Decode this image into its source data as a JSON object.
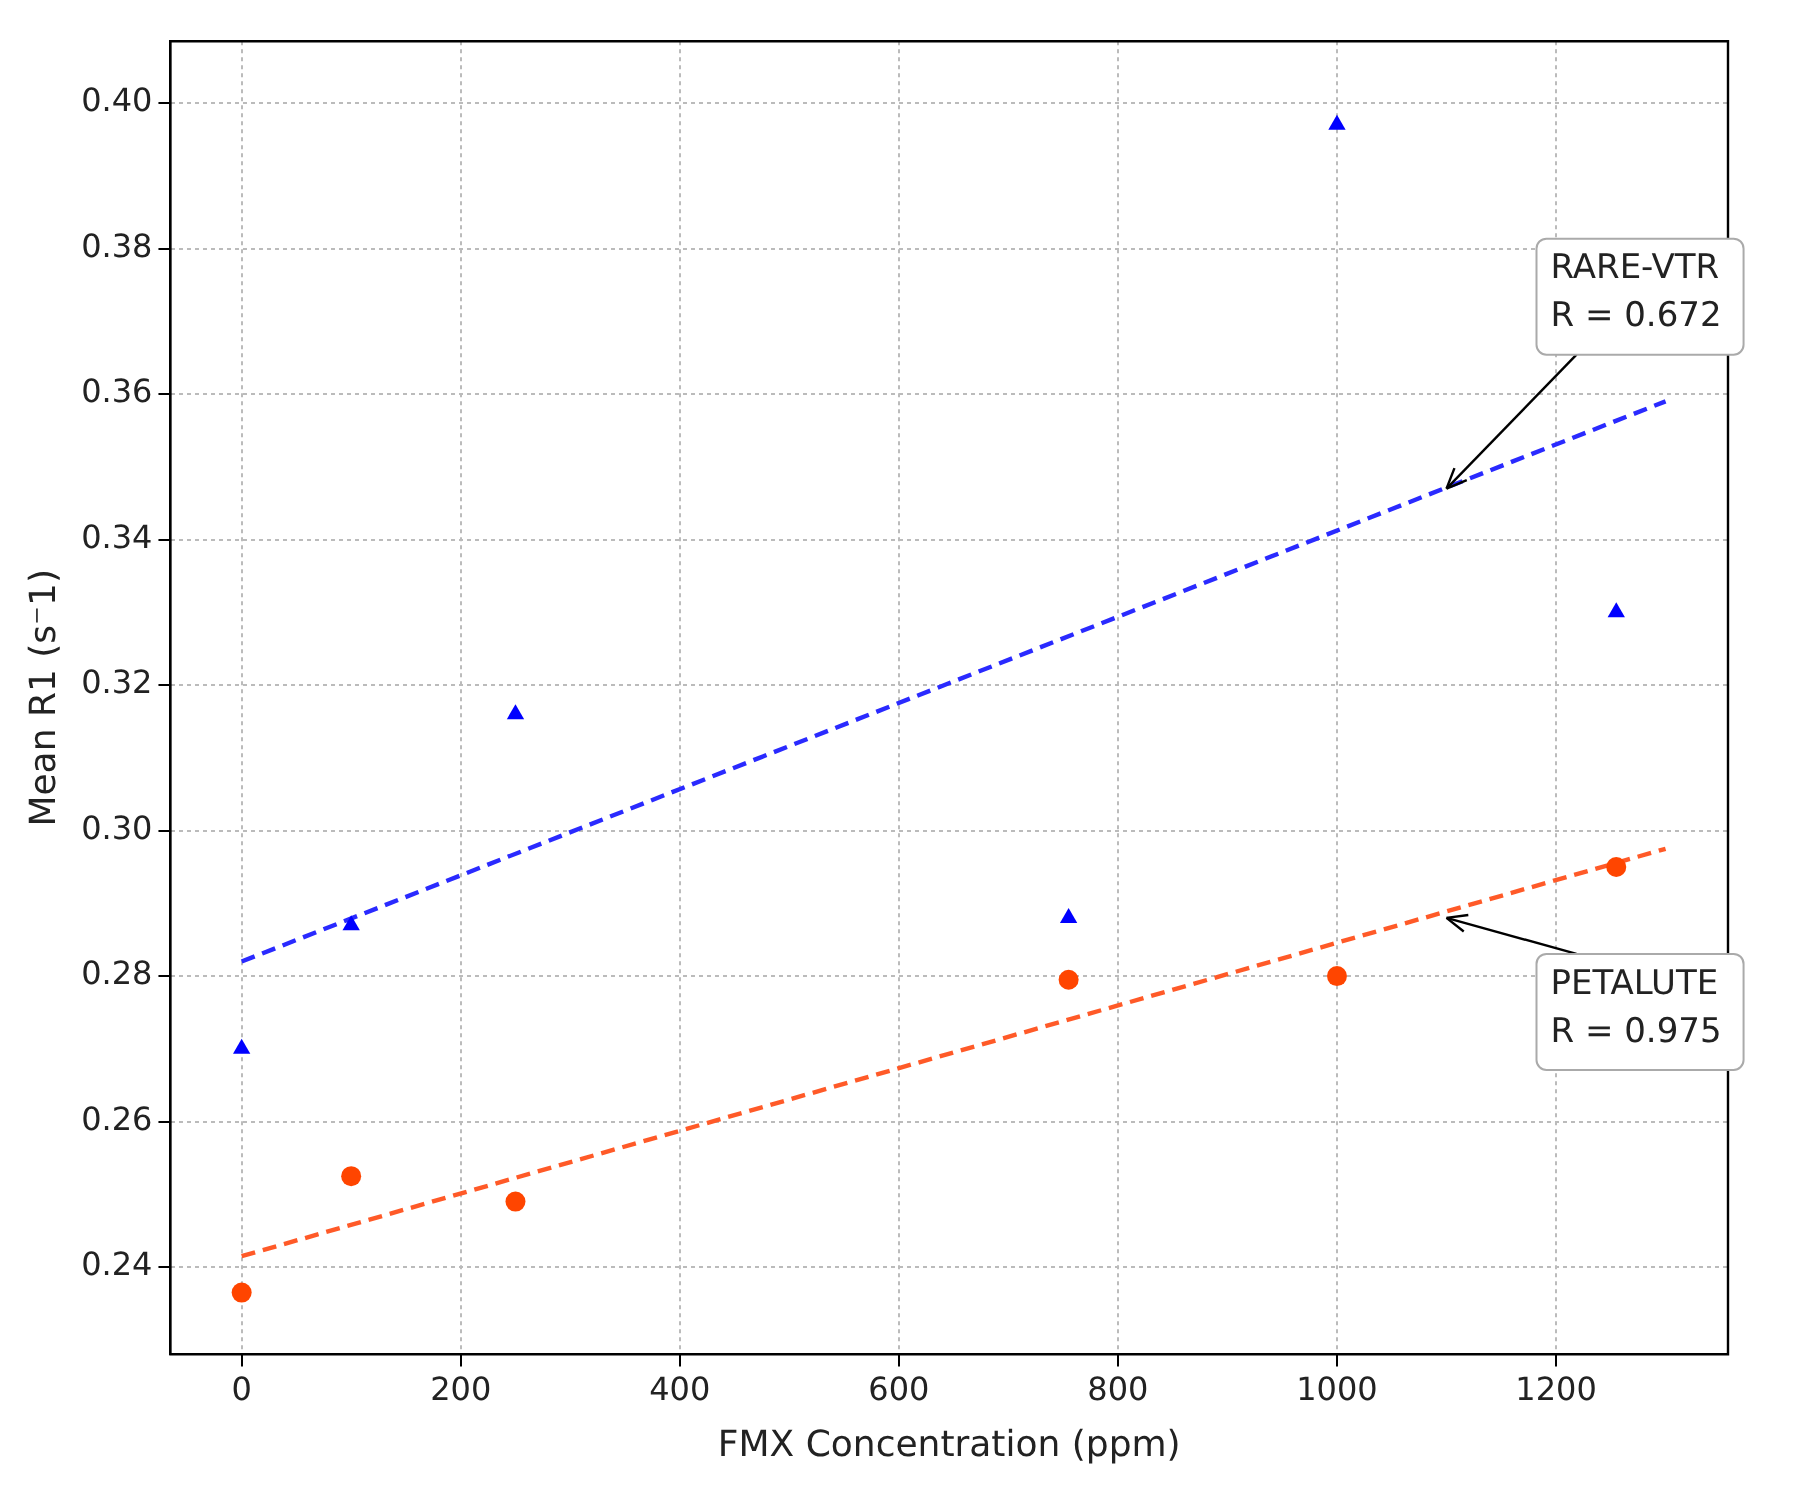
{
  "chart_data": {
    "type": "scatter",
    "xlabel": "FMX Concentration (ppm)",
    "ylabel": "Mean R1 (s⁻1)",
    "xlim": [
      -65,
      1357
    ],
    "xticks": [
      0,
      200,
      400,
      600,
      800,
      1000,
      1200
    ],
    "ylim": [
      0.228,
      0.4085
    ],
    "yticks": [
      0.24,
      0.26,
      0.28,
      {
        "value": 0.3,
        "label": "0.30"
      },
      0.32,
      0.34,
      0.36,
      0.38,
      {
        "value": 0.4,
        "label": "0.40"
      }
    ],
    "grid": true,
    "legend": false,
    "series": [
      {
        "marker": "triangle",
        "color": "#0000ff",
        "x": [
          0,
          100,
          250,
          755,
          1000,
          1255
        ],
        "values": [
          0.27,
          0.287,
          0.316,
          0.288,
          0.397,
          0.33
        ]
      },
      {
        "marker": "circle",
        "color": "#ff4500",
        "x": [
          0,
          100,
          250,
          755,
          1000,
          1255
        ],
        "values": [
          0.2365,
          0.2525,
          0.249,
          0.2795,
          0.28,
          0.295
        ]
      },
      {
        "type": "line",
        "marker": "none",
        "line_style": "dashed",
        "color": "#2a2aff",
        "x": [
          0,
          1300
        ],
        "values": [
          0.282,
          0.359
        ]
      },
      {
        "type": "line",
        "marker": "none",
        "line_style": "dashed",
        "color": "#ff5a28",
        "x": [
          0,
          1300
        ],
        "values": [
          0.2415,
          0.2975
        ]
      }
    ],
    "annotations": [
      {
        "text": "RARE-VTR\nR = 0.672",
        "x": 1100,
        "y": 0.347
      },
      {
        "text": "PETALUTE\nR = 0.975",
        "x": 1100,
        "y": 0.288
      }
    ]
  }
}
